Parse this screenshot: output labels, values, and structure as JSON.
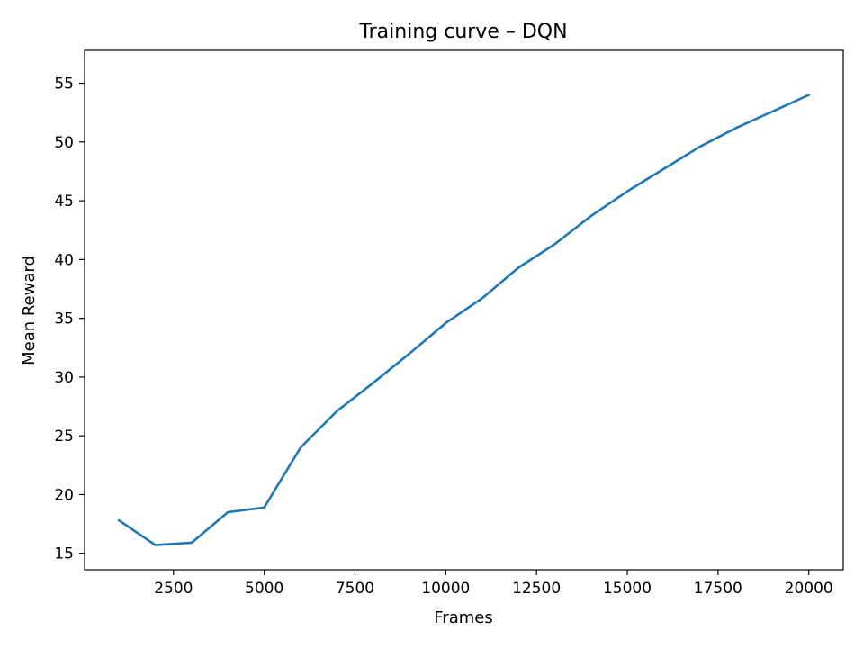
{
  "chart_data": {
    "type": "line",
    "title": "Training curve – DQN",
    "xlabel": "Frames",
    "ylabel": "Mean Reward",
    "xlim": [
      50,
      20950
    ],
    "ylim": [
      13.6,
      57.8
    ],
    "grid": false,
    "legend": "none",
    "xticks": [
      2500,
      5000,
      7500,
      10000,
      12500,
      15000,
      17500,
      20000
    ],
    "xtick_labels": [
      "2500",
      "5000",
      "7500",
      "10000",
      "12500",
      "15000",
      "17500",
      "20000"
    ],
    "yticks": [
      15,
      20,
      25,
      30,
      35,
      40,
      45,
      50,
      55
    ],
    "ytick_labels": [
      "15",
      "20",
      "25",
      "30",
      "35",
      "40",
      "45",
      "50",
      "55"
    ],
    "series": [
      {
        "name": "DQN",
        "color": "#1f77b4",
        "x": [
          1000,
          2000,
          3000,
          4000,
          5000,
          6000,
          7000,
          8000,
          9000,
          10000,
          11000,
          12000,
          13000,
          14000,
          15000,
          16000,
          17000,
          18000,
          19000,
          20000
        ],
        "y": [
          17.8,
          15.7,
          15.9,
          18.5,
          18.9,
          24.0,
          27.1,
          29.5,
          32.0,
          34.6,
          36.7,
          39.3,
          41.3,
          43.7,
          45.8,
          47.7,
          49.6,
          51.2,
          52.6,
          54.0
        ]
      }
    ]
  }
}
